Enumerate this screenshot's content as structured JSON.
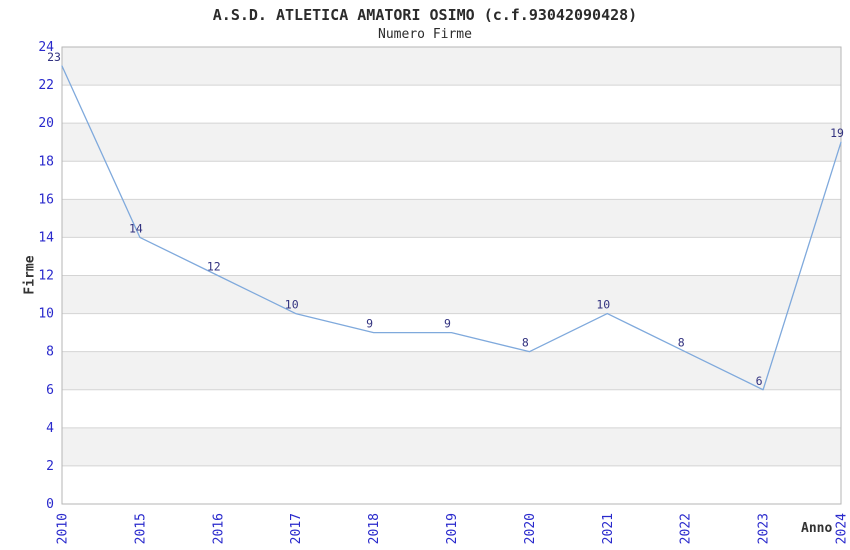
{
  "header": {
    "title": "A.S.D. ATLETICA AMATORI OSIMO (c.f.93042090428)",
    "subtitle": "Numero Firme"
  },
  "chart_data": {
    "type": "line",
    "title": "A.S.D. ATLETICA AMATORI OSIMO (c.f.93042090428)",
    "subtitle": "Numero Firme",
    "xlabel": "Anno",
    "ylabel": "Firme",
    "categories": [
      "2010",
      "2015",
      "2016",
      "2017",
      "2018",
      "2019",
      "2020",
      "2021",
      "2022",
      "2023",
      "2024"
    ],
    "values": [
      23,
      14,
      12,
      10,
      9,
      9,
      8,
      10,
      8,
      6,
      19
    ],
    "ylim": [
      0,
      24
    ],
    "ytick_step": 2,
    "yticks": [
      0,
      2,
      4,
      6,
      8,
      10,
      12,
      14,
      16,
      18,
      20,
      22,
      24
    ],
    "grid": "horizontal-bands-alternating",
    "legend": "none",
    "markers": "none",
    "data_labels_shown": true
  },
  "colors": {
    "line": "#7fa9dc",
    "tick_label": "#2929cc",
    "data_label": "#333380",
    "band_gray": "#f2f2f2",
    "band_white": "#ffffff",
    "gridline": "#d4d4d4",
    "plot_border": "#b6b6b6",
    "title_text": "#2b2b2b",
    "axis_title_text": "#333333",
    "background": "#ffffff"
  }
}
